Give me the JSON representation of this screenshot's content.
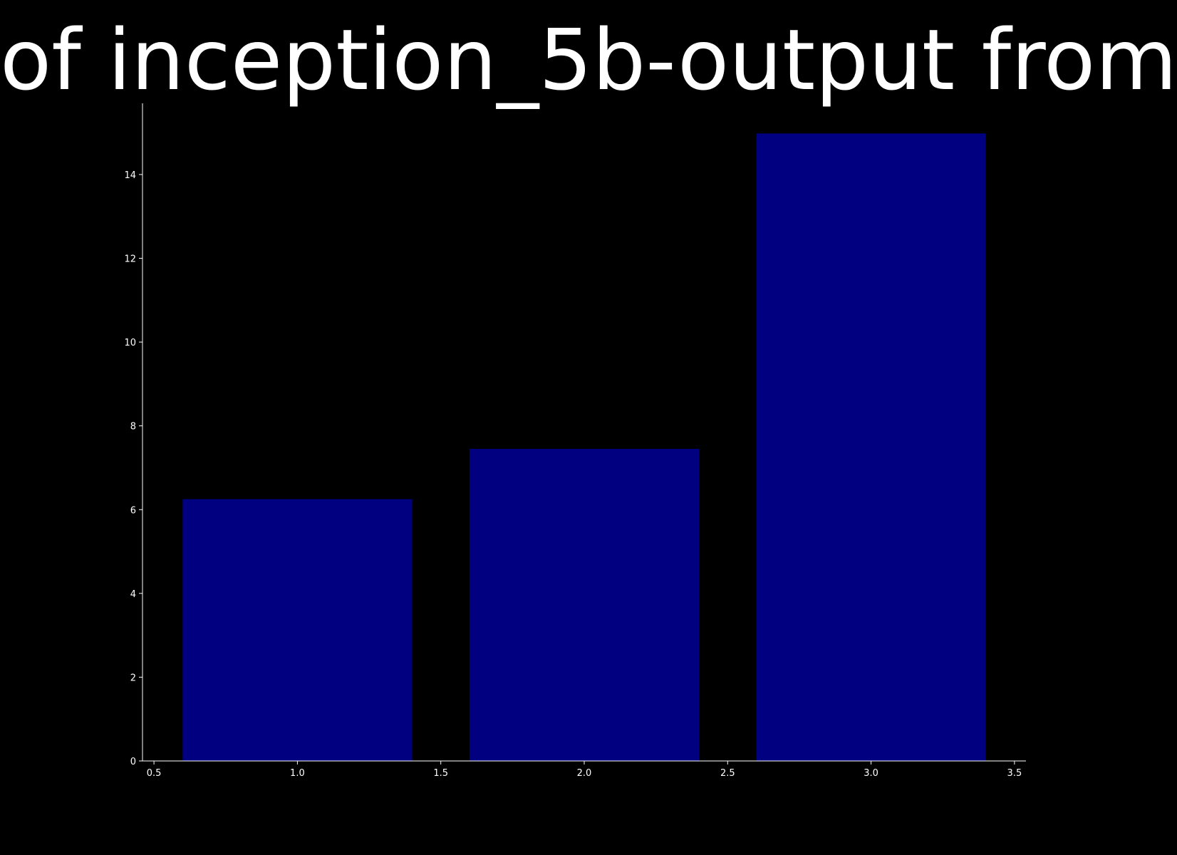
{
  "chart_data": {
    "type": "bar",
    "title": "of inception_5b-output from",
    "xlabel": "",
    "ylabel": "",
    "x": [
      1.0,
      2.0,
      3.0
    ],
    "values": [
      6.25,
      7.45,
      14.98
    ],
    "bar_width": 0.8,
    "xlim": [
      0.46,
      3.54
    ],
    "ylim": [
      0,
      15.7
    ],
    "xticks": [
      0.5,
      1.0,
      1.5,
      2.0,
      2.5,
      3.0,
      3.5
    ],
    "xtick_labels": [
      "0.5",
      "1.0",
      "1.5",
      "2.0",
      "2.5",
      "3.0",
      "3.5"
    ],
    "yticks": [
      0,
      2,
      4,
      6,
      8,
      10,
      12,
      14
    ],
    "ytick_labels": [
      "0",
      "2",
      "4",
      "6",
      "8",
      "10",
      "12",
      "14"
    ],
    "grid": false,
    "legend": "none",
    "colors": {
      "background": "#000000",
      "bar": "#000080",
      "axis": "#ffffff",
      "text": "#ffffff"
    }
  }
}
